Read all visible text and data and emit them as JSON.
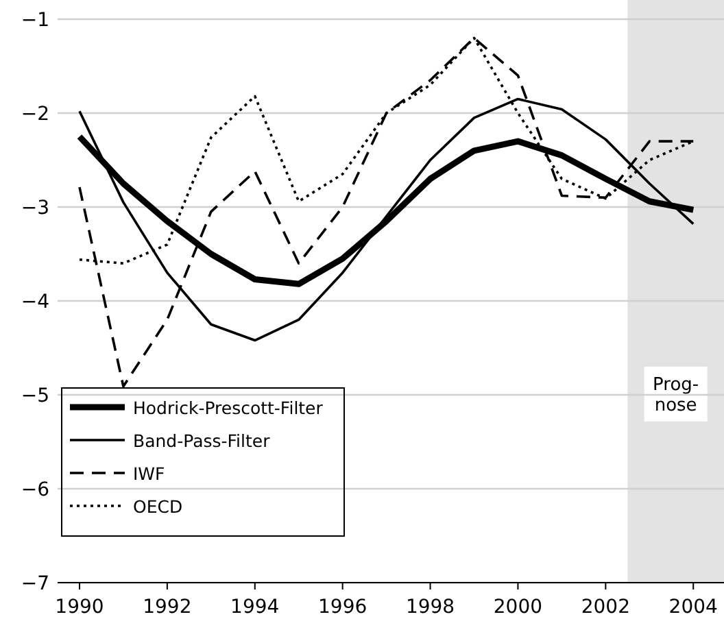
{
  "chart_data": {
    "type": "line",
    "x": [
      1990,
      1991,
      1992,
      1993,
      1994,
      1995,
      1996,
      1997,
      1998,
      1999,
      2000,
      2001,
      2002,
      2003,
      2004
    ],
    "series": [
      {
        "name": "Hodrick-Prescott-Filter",
        "color": "#000000",
        "line_style": "solid",
        "values": [
          -2.25,
          -2.75,
          -3.15,
          -3.5,
          -3.77,
          -3.82,
          -3.55,
          -3.15,
          -2.7,
          -2.4,
          -2.3,
          -2.45,
          -2.7,
          -2.94,
          -3.03
        ]
      },
      {
        "name": "Band-Pass-Filter",
        "color": "#000000",
        "line_style": "solid",
        "values": [
          -1.98,
          -2.95,
          -3.7,
          -4.25,
          -4.42,
          -4.2,
          -3.7,
          -3.1,
          -2.5,
          -2.05,
          -1.85,
          -1.96,
          -2.28,
          -2.75,
          -3.18
        ]
      },
      {
        "name": "IWF",
        "color": "#000000",
        "line_style": "dashed",
        "values": [
          -2.79,
          -4.91,
          -4.2,
          -3.05,
          -2.62,
          -3.6,
          -3.0,
          -2.0,
          -1.65,
          -1.2,
          -1.6,
          -2.88,
          -2.9,
          -2.3,
          -2.3
        ]
      },
      {
        "name": "OECD",
        "color": "#000000",
        "line_style": "dotted",
        "values": [
          -3.56,
          -3.6,
          -3.4,
          -2.26,
          -1.82,
          -2.94,
          -2.65,
          -2.0,
          -1.7,
          -1.2,
          -2.0,
          -2.7,
          -2.91,
          -2.5,
          -2.3
        ]
      }
    ],
    "xlim": [
      1989.5,
      2004.7
    ],
    "xticks": [
      1990,
      1992,
      1994,
      1996,
      1998,
      2000,
      2002,
      2004
    ],
    "ylim": [
      -7,
      -1
    ],
    "yticks": [
      {
        "value": -7,
        "label": "−7"
      },
      {
        "value": -6,
        "label": "−6"
      },
      {
        "value": -5,
        "label": "−5"
      },
      {
        "value": -4,
        "label": "−4"
      },
      {
        "value": -3,
        "label": "−3"
      },
      {
        "value": -2,
        "label": "−2"
      },
      {
        "value": -1,
        "label": "−1"
      }
    ],
    "bands": [
      {
        "axis": "x",
        "from": 2002.5,
        "to": 2004.7,
        "label": "Prog-\nnose",
        "color": "#e3e3e3"
      }
    ],
    "grid": "y",
    "legend": "bottom left"
  }
}
